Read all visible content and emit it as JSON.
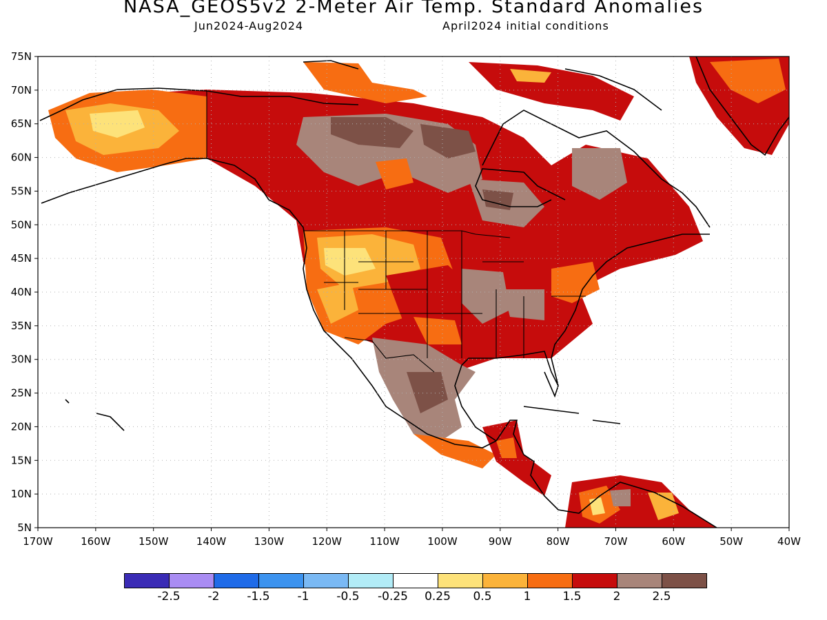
{
  "title": "NASA_GEOS5v2 2-Meter Air Temp. Standard Anomalies",
  "period": "Jun2024-Aug2024",
  "initial_conditions": "April2024 initial conditions",
  "map": {
    "lon_ticks": [
      "170W",
      "160W",
      "150W",
      "140W",
      "130W",
      "120W",
      "110W",
      "100W",
      "90W",
      "80W",
      "70W",
      "60W",
      "50W",
      "40W"
    ],
    "lat_ticks": [
      "75N",
      "70N",
      "65N",
      "60N",
      "55N",
      "50N",
      "45N",
      "40N",
      "35N",
      "30N",
      "25N",
      "20N",
      "15N",
      "10N",
      "5N"
    ],
    "extent": {
      "lon": [
        -170,
        -40
      ],
      "lat": [
        5,
        75
      ]
    },
    "grid": "dotted"
  },
  "colorbar": {
    "colors": [
      "#3a2bb5",
      "#a98cf3",
      "#1f6be8",
      "#3c93ef",
      "#7ab9f4",
      "#b2ecf7",
      "#ffffff",
      "#fde27a",
      "#fbb33a",
      "#f76d12",
      "#c60c0c",
      "#a8857a",
      "#7d5147"
    ],
    "labels": [
      "-2.5",
      "-2",
      "-1.5",
      "-1",
      "-0.5",
      "-0.25",
      "0.25",
      "0.5",
      "1",
      "1.5",
      "2",
      "2.5"
    ]
  }
}
